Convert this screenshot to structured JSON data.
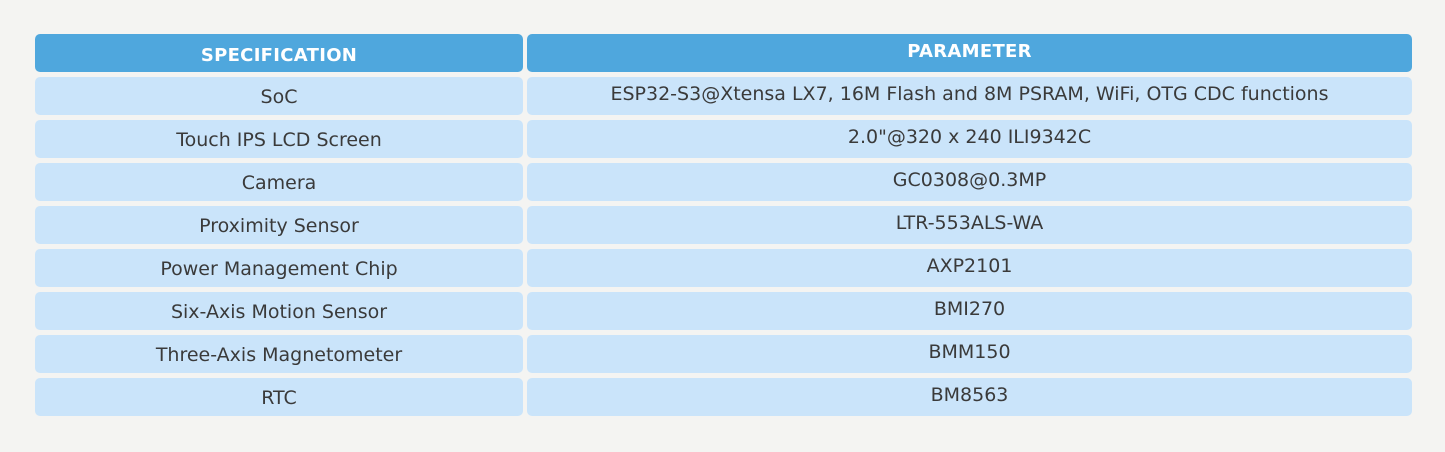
{
  "table": {
    "headers": {
      "specification": "SPECIFICATION",
      "parameter": "PARAMETER"
    },
    "rows": [
      {
        "spec": "SoC",
        "param": "ESP32-S3@Xtensa LX7, 16M Flash and 8M PSRAM, WiFi, OTG CDC functions"
      },
      {
        "spec": "Touch IPS LCD Screen",
        "param": "2.0\"@320 x 240 ILI9342C"
      },
      {
        "spec": "Camera",
        "param": "GC0308@0.3MP"
      },
      {
        "spec": "Proximity Sensor",
        "param": "LTR-553ALS-WA"
      },
      {
        "spec": "Power Management Chip",
        "param": "AXP2101"
      },
      {
        "spec": "Six-Axis Motion Sensor",
        "param": "BMI270"
      },
      {
        "spec": "Three-Axis Magnetometer",
        "param": "BMM150"
      },
      {
        "spec": "RTC",
        "param": "BM8563"
      }
    ]
  },
  "colors": {
    "header_bg": "#4fa7dd",
    "row_bg": "#cae4fa",
    "page_bg": "#f4f4f2"
  }
}
